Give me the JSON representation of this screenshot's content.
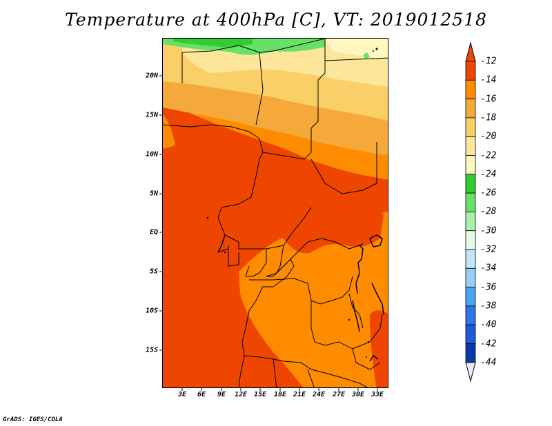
{
  "title": "Temperature at 400hPa [C], VT: 2019012518",
  "credit": "GrADS: IGES/COLA",
  "map": {
    "lat_labels": [
      "20N",
      "15N",
      "10N",
      "5N",
      "EQ",
      "5S",
      "10S",
      "15S"
    ],
    "lon_labels": [
      "3E",
      "6E",
      "9E",
      "12E",
      "15E",
      "18E",
      "21E",
      "24E",
      "27E",
      "30E",
      "33E"
    ]
  },
  "colorbar": {
    "labels": [
      "-12",
      "-14",
      "-16",
      "-18",
      "-20",
      "-22",
      "-24",
      "-26",
      "-28",
      "-30",
      "-32",
      "-34",
      "-36",
      "-38",
      "-40",
      "-42",
      "-44"
    ],
    "colors": [
      "#ee4500",
      "#ff8c00",
      "#f5a93a",
      "#fbcf68",
      "#fde69a",
      "#fff6c2",
      "#33cc33",
      "#66e066",
      "#aaf0aa",
      "#e6fae6",
      "#c4e4fb",
      "#96d0fa",
      "#4ba6f0",
      "#2d78e8",
      "#1d5ad8",
      "#0a3aa8",
      "#0a0a6e"
    ],
    "top_arrow_color": "#ee4500",
    "bottom_arrow_color": "#e8e8ff"
  }
}
